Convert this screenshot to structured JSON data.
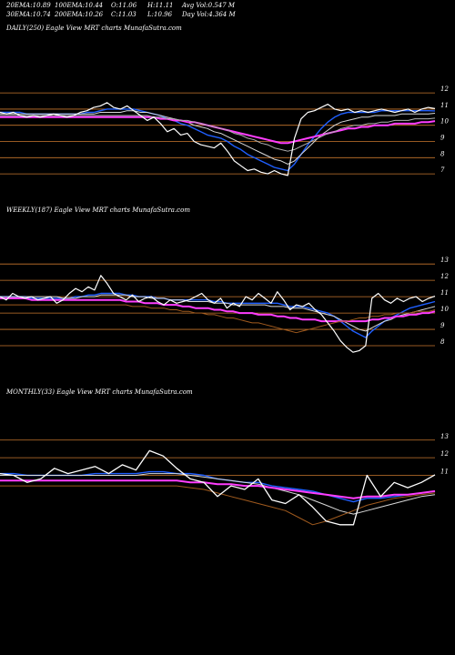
{
  "header": {
    "row1": [
      {
        "label": "20EMA:",
        "value": "10.89"
      },
      {
        "label": "100EMA:",
        "value": "10.44"
      },
      {
        "label": "O:",
        "value": "11.06"
      },
      {
        "label": "H:",
        "value": "11.11"
      },
      {
        "label": "Avg Vol:",
        "value": "0.547 M"
      }
    ],
    "row2": [
      {
        "label": "30EMA:",
        "value": "10.74"
      },
      {
        "label": "200EMA:",
        "value": "10.26"
      },
      {
        "label": "C:",
        "value": "11.03"
      },
      {
        "label": "L:",
        "value": "10.96"
      },
      {
        "label": "Day Vol:",
        "value": "4.364 M"
      }
    ]
  },
  "colors": {
    "background": "#000000",
    "grid": "#c8772e",
    "price": "#ffffff",
    "ema_fast": "#1f5fff",
    "ema_mid": "#d9d9d9",
    "ema_slow": "#ff3dff",
    "ema_long": "#b2b2b2",
    "ema_brown": "#a05a1e"
  },
  "chart_data": [
    {
      "type": "line",
      "title": "DAILY(250) Eagle  View  MRT charts MunafaSutra.com",
      "y_ticks": [
        12,
        11,
        10,
        9,
        8,
        7
      ],
      "ylim": [
        6.5,
        12.4
      ],
      "series": [
        {
          "name": "",
          "color_key": "price",
          "values": [
            10.8,
            10.7,
            10.8,
            10.6,
            10.5,
            10.6,
            10.5,
            10.6,
            10.7,
            10.6,
            10.5,
            10.6,
            10.8,
            10.9,
            11.1,
            11.2,
            11.4,
            11.1,
            11.0,
            11.2,
            10.9,
            10.6,
            10.3,
            10.5,
            10.1,
            9.6,
            9.8,
            9.4,
            9.5,
            9.0,
            8.8,
            8.7,
            8.6,
            8.9,
            8.4,
            7.8,
            7.5,
            7.2,
            7.3,
            7.1,
            7.0,
            7.2,
            7.0,
            6.9,
            9.2,
            10.4,
            10.8,
            10.9,
            11.1,
            11.3,
            11.0,
            10.9,
            11.0,
            10.8,
            10.9,
            10.8,
            10.9,
            11.0,
            10.9,
            10.8,
            10.9,
            11.0,
            10.8,
            11.0,
            11.1,
            11.03
          ]
        },
        {
          "name": "",
          "color_key": "ema_fast",
          "values": [
            10.8,
            10.8,
            10.8,
            10.8,
            10.7,
            10.7,
            10.7,
            10.7,
            10.7,
            10.7,
            10.7,
            10.7,
            10.7,
            10.8,
            10.8,
            10.9,
            11.0,
            11.0,
            11.0,
            11.0,
            11.0,
            10.9,
            10.8,
            10.7,
            10.6,
            10.4,
            10.3,
            10.1,
            10.0,
            9.8,
            9.6,
            9.4,
            9.3,
            9.2,
            9.0,
            8.7,
            8.5,
            8.2,
            8.0,
            7.8,
            7.6,
            7.4,
            7.3,
            7.2,
            7.6,
            8.2,
            8.8,
            9.3,
            9.8,
            10.2,
            10.5,
            10.7,
            10.8,
            10.8,
            10.8,
            10.8,
            10.8,
            10.9,
            10.9,
            10.9,
            10.9,
            10.9,
            10.9,
            10.9,
            10.9,
            10.89
          ]
        },
        {
          "name": "",
          "color_key": "ema_mid",
          "values": [
            10.7,
            10.7,
            10.7,
            10.7,
            10.7,
            10.7,
            10.7,
            10.7,
            10.7,
            10.7,
            10.7,
            10.7,
            10.7,
            10.7,
            10.7,
            10.8,
            10.8,
            10.8,
            10.8,
            10.9,
            10.9,
            10.8,
            10.8,
            10.7,
            10.6,
            10.5,
            10.4,
            10.3,
            10.2,
            10.0,
            9.9,
            9.8,
            9.6,
            9.5,
            9.3,
            9.1,
            8.9,
            8.7,
            8.5,
            8.3,
            8.1,
            7.9,
            7.8,
            7.6,
            7.8,
            8.2,
            8.6,
            9.0,
            9.4,
            9.7,
            10.0,
            10.2,
            10.3,
            10.4,
            10.5,
            10.5,
            10.6,
            10.6,
            10.6,
            10.6,
            10.7,
            10.7,
            10.7,
            10.7,
            10.7,
            10.74
          ]
        },
        {
          "name": "",
          "color_key": "ema_slow",
          "values": [
            10.5,
            10.5,
            10.5,
            10.5,
            10.5,
            10.5,
            10.5,
            10.5,
            10.5,
            10.5,
            10.5,
            10.5,
            10.5,
            10.5,
            10.5,
            10.5,
            10.5,
            10.5,
            10.5,
            10.5,
            10.5,
            10.5,
            10.5,
            10.5,
            10.4,
            10.4,
            10.3,
            10.3,
            10.2,
            10.2,
            10.1,
            10.0,
            9.9,
            9.8,
            9.7,
            9.6,
            9.5,
            9.4,
            9.3,
            9.2,
            9.1,
            9.0,
            8.9,
            8.9,
            9.0,
            9.1,
            9.2,
            9.3,
            9.4,
            9.5,
            9.6,
            9.7,
            9.8,
            9.8,
            9.9,
            9.9,
            10.0,
            10.0,
            10.0,
            10.1,
            10.1,
            10.1,
            10.1,
            10.2,
            10.2,
            10.26
          ]
        },
        {
          "name": "",
          "color_key": "ema_long",
          "values": [
            10.6,
            10.6,
            10.6,
            10.6,
            10.6,
            10.6,
            10.6,
            10.6,
            10.6,
            10.6,
            10.6,
            10.6,
            10.6,
            10.6,
            10.6,
            10.6,
            10.6,
            10.6,
            10.6,
            10.6,
            10.6,
            10.6,
            10.6,
            10.5,
            10.5,
            10.4,
            10.4,
            10.3,
            10.3,
            10.2,
            10.1,
            10.0,
            9.9,
            9.8,
            9.7,
            9.5,
            9.4,
            9.2,
            9.1,
            8.9,
            8.8,
            8.6,
            8.5,
            8.4,
            8.5,
            8.7,
            8.9,
            9.1,
            9.3,
            9.5,
            9.6,
            9.8,
            9.9,
            10.0,
            10.0,
            10.1,
            10.1,
            10.2,
            10.2,
            10.3,
            10.3,
            10.3,
            10.4,
            10.4,
            10.4,
            10.44
          ]
        }
      ]
    },
    {
      "type": "line",
      "title": "WEEKLY(187) Eagle  View  MRT charts MunafaSutra.com",
      "y_ticks": [
        13,
        12,
        11,
        10,
        9,
        8
      ],
      "ylim": [
        7.0,
        13.4
      ],
      "series": [
        {
          "name": "",
          "color_key": "price",
          "values": [
            11.0,
            10.8,
            11.2,
            11.0,
            10.9,
            11.0,
            10.8,
            10.9,
            11.0,
            10.6,
            10.8,
            11.2,
            11.5,
            11.3,
            11.6,
            11.4,
            12.3,
            11.8,
            11.2,
            11.0,
            10.8,
            11.1,
            10.7,
            10.9,
            11.0,
            10.7,
            10.5,
            10.8,
            10.6,
            10.7,
            10.8,
            11.0,
            11.2,
            10.8,
            10.6,
            10.9,
            10.3,
            10.6,
            10.4,
            11.0,
            10.8,
            11.2,
            10.9,
            10.6,
            11.3,
            10.8,
            10.2,
            10.5,
            10.4,
            10.6,
            10.2,
            9.9,
            9.4,
            8.9,
            8.3,
            7.9,
            7.6,
            7.7,
            8.0,
            10.9,
            11.2,
            10.8,
            10.6,
            10.9,
            10.7,
            10.9,
            11.0,
            10.7,
            10.9,
            11.03
          ]
        },
        {
          "name": "",
          "color_key": "ema_fast",
          "values": [
            11.0,
            11.0,
            11.0,
            11.0,
            11.0,
            10.9,
            10.9,
            10.9,
            10.9,
            10.9,
            10.9,
            10.9,
            11.0,
            11.0,
            11.1,
            11.1,
            11.2,
            11.2,
            11.2,
            11.2,
            11.1,
            11.1,
            11.0,
            11.0,
            11.0,
            10.9,
            10.9,
            10.8,
            10.8,
            10.8,
            10.8,
            10.8,
            10.8,
            10.8,
            10.7,
            10.7,
            10.6,
            10.6,
            10.6,
            10.6,
            10.6,
            10.6,
            10.6,
            10.6,
            10.6,
            10.5,
            10.4,
            10.4,
            10.4,
            10.3,
            10.2,
            10.1,
            10.0,
            9.8,
            9.5,
            9.2,
            8.9,
            8.7,
            8.5,
            8.9,
            9.2,
            9.5,
            9.7,
            9.9,
            10.1,
            10.3,
            10.4,
            10.5,
            10.6,
            10.7
          ]
        },
        {
          "name": "",
          "color_key": "ema_mid",
          "values": [
            11.0,
            11.0,
            11.0,
            11.0,
            11.0,
            11.0,
            11.0,
            11.0,
            11.0,
            11.0,
            10.9,
            10.9,
            10.9,
            11.0,
            11.0,
            11.0,
            11.1,
            11.1,
            11.1,
            11.1,
            11.1,
            11.0,
            11.0,
            11.0,
            10.9,
            10.9,
            10.9,
            10.8,
            10.8,
            10.8,
            10.7,
            10.7,
            10.7,
            10.7,
            10.6,
            10.6,
            10.6,
            10.5,
            10.5,
            10.5,
            10.5,
            10.5,
            10.5,
            10.4,
            10.4,
            10.4,
            10.3,
            10.3,
            10.3,
            10.2,
            10.1,
            10.0,
            9.9,
            9.8,
            9.6,
            9.4,
            9.2,
            9.0,
            8.9,
            9.1,
            9.3,
            9.5,
            9.6,
            9.8,
            9.9,
            10.0,
            10.1,
            10.2,
            10.3,
            10.4
          ]
        },
        {
          "name": "",
          "color_key": "ema_slow",
          "values": [
            10.9,
            10.9,
            10.9,
            10.9,
            10.9,
            10.8,
            10.8,
            10.8,
            10.8,
            10.8,
            10.8,
            10.8,
            10.8,
            10.8,
            10.8,
            10.8,
            10.8,
            10.8,
            10.8,
            10.8,
            10.7,
            10.7,
            10.7,
            10.6,
            10.6,
            10.6,
            10.5,
            10.5,
            10.5,
            10.4,
            10.4,
            10.3,
            10.3,
            10.3,
            10.2,
            10.2,
            10.1,
            10.1,
            10.0,
            10.0,
            10.0,
            9.9,
            9.9,
            9.9,
            9.8,
            9.8,
            9.7,
            9.7,
            9.6,
            9.6,
            9.6,
            9.5,
            9.5,
            9.5,
            9.5,
            9.5,
            9.5,
            9.5,
            9.5,
            9.6,
            9.6,
            9.7,
            9.7,
            9.8,
            9.8,
            9.9,
            9.9,
            10.0,
            10.0,
            10.1
          ]
        },
        {
          "name": "",
          "color_key": "ema_brown",
          "values": [
            10.5,
            10.5,
            10.5,
            10.5,
            10.5,
            10.5,
            10.5,
            10.5,
            10.5,
            10.5,
            10.5,
            10.5,
            10.5,
            10.5,
            10.5,
            10.5,
            10.5,
            10.5,
            10.5,
            10.5,
            10.5,
            10.4,
            10.4,
            10.4,
            10.3,
            10.3,
            10.3,
            10.2,
            10.2,
            10.1,
            10.1,
            10.0,
            10.0,
            9.9,
            9.9,
            9.8,
            9.7,
            9.7,
            9.6,
            9.5,
            9.4,
            9.4,
            9.3,
            9.2,
            9.1,
            9.0,
            8.9,
            8.8,
            8.9,
            9.0,
            9.1,
            9.2,
            9.3,
            9.4,
            9.5,
            9.5,
            9.6,
            9.7,
            9.7,
            9.8,
            9.8,
            9.9,
            9.9,
            10.0,
            10.0,
            10.0,
            10.1,
            10.1,
            10.1,
            10.2
          ]
        }
      ]
    },
    {
      "type": "line",
      "title": "MONTHLY(33) Eagle  View  MRT charts MunafaSutra.com",
      "y_ticks": [
        13,
        12,
        11
      ],
      "ylim": [
        7.0,
        13.4
      ],
      "series": [
        {
          "name": "",
          "color_key": "price",
          "values": [
            11.1,
            11.0,
            10.6,
            10.8,
            11.4,
            11.1,
            11.3,
            11.5,
            11.1,
            11.6,
            11.3,
            12.4,
            12.1,
            11.4,
            10.8,
            10.6,
            9.8,
            10.4,
            10.2,
            10.8,
            9.6,
            9.4,
            9.9,
            9.2,
            8.4,
            8.2,
            8.2,
            11.0,
            9.8,
            10.6,
            10.3,
            10.6,
            11.03
          ]
        },
        {
          "name": "",
          "color_key": "ema_fast",
          "values": [
            11.1,
            11.1,
            11.0,
            11.0,
            11.0,
            11.0,
            11.0,
            11.1,
            11.1,
            11.1,
            11.1,
            11.2,
            11.2,
            11.1,
            11.1,
            11.0,
            10.8,
            10.7,
            10.6,
            10.6,
            10.4,
            10.3,
            10.2,
            10.1,
            9.9,
            9.7,
            9.5,
            9.7,
            9.7,
            9.8,
            9.9,
            10.0,
            10.1
          ]
        },
        {
          "name": "",
          "color_key": "ema_mid",
          "values": [
            11.0,
            11.0,
            11.0,
            11.0,
            11.0,
            11.0,
            11.0,
            11.0,
            11.0,
            11.0,
            11.0,
            11.1,
            11.1,
            11.1,
            11.0,
            10.9,
            10.8,
            10.7,
            10.6,
            10.5,
            10.3,
            10.1,
            9.9,
            9.6,
            9.3,
            9.0,
            8.8,
            9.0,
            9.2,
            9.4,
            9.6,
            9.8,
            9.9
          ]
        },
        {
          "name": "",
          "color_key": "ema_slow",
          "values": [
            10.7,
            10.7,
            10.7,
            10.7,
            10.7,
            10.7,
            10.7,
            10.7,
            10.7,
            10.7,
            10.7,
            10.7,
            10.7,
            10.7,
            10.6,
            10.6,
            10.5,
            10.5,
            10.4,
            10.4,
            10.3,
            10.2,
            10.1,
            10.0,
            9.9,
            9.8,
            9.7,
            9.8,
            9.8,
            9.9,
            9.9,
            10.0,
            10.1
          ]
        },
        {
          "name": "",
          "color_key": "ema_brown",
          "values": [
            10.4,
            10.4,
            10.4,
            10.4,
            10.4,
            10.4,
            10.4,
            10.4,
            10.4,
            10.4,
            10.4,
            10.4,
            10.4,
            10.4,
            10.3,
            10.2,
            10.0,
            9.8,
            9.6,
            9.4,
            9.2,
            9.0,
            8.6,
            8.2,
            8.4,
            8.7,
            9.0,
            9.3,
            9.5,
            9.7,
            9.8,
            9.9,
            10.0
          ]
        }
      ]
    }
  ]
}
